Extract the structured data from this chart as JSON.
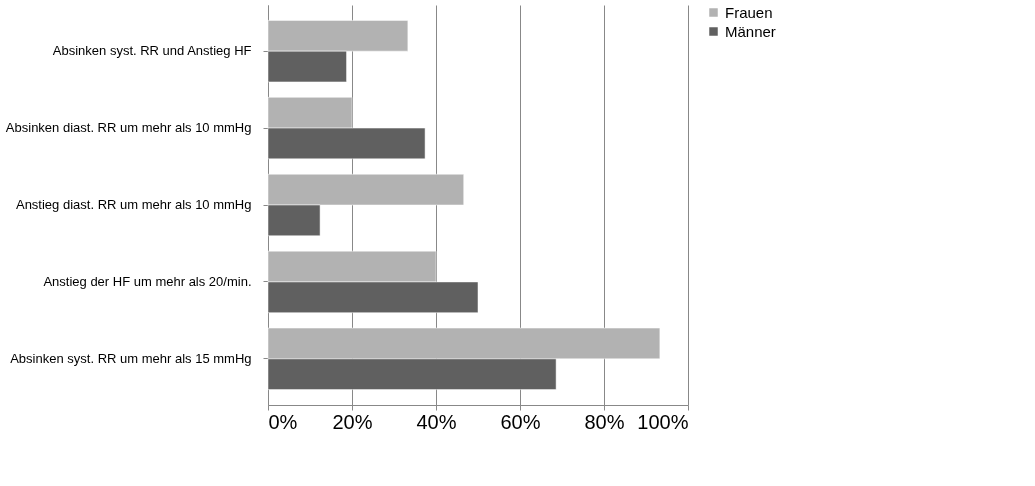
{
  "chart_data": {
    "type": "bar",
    "orientation": "horizontal",
    "categories": [
      "Absinken syst. RR und Anstieg HF",
      "Absinken diast. RR um mehr als 10 mmHg",
      "Anstieg diast. RR um mehr als 10 mmHg",
      "Anstieg der HF um mehr als 20/min.",
      "Absinken syst. RR um mehr als 15 mmHg"
    ],
    "series": [
      {
        "name": "Frauen",
        "color": "#b2b2b2",
        "values": [
          33.3,
          20,
          46.6,
          40,
          93.3
        ]
      },
      {
        "name": "Männer",
        "color": "#606060",
        "values": [
          18.7,
          37.4,
          12.4,
          50,
          68.6
        ]
      }
    ],
    "xlim": [
      0,
      100
    ],
    "xticks": [
      {
        "value": 0,
        "label": "0%"
      },
      {
        "value": 20,
        "label": "20%"
      },
      {
        "value": 40,
        "label": "40%"
      },
      {
        "value": 60,
        "label": "60%"
      },
      {
        "value": 80,
        "label": "80%"
      },
      {
        "value": 100,
        "label": "100%"
      }
    ],
    "grid": "x",
    "legend": "right"
  }
}
